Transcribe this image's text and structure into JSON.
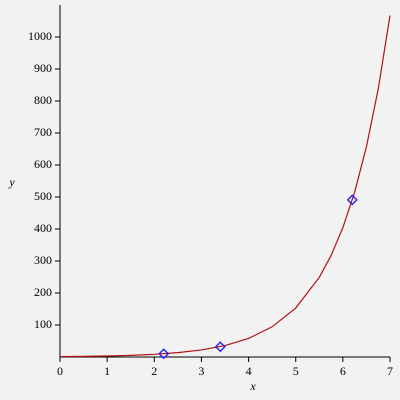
{
  "chart_data": {
    "type": "line",
    "x_label": "x",
    "y_label": "y",
    "xlim": [
      0,
      7
    ],
    "ylim": [
      0,
      1100
    ],
    "xticks": [
      0,
      1,
      2,
      3,
      4,
      5,
      6,
      7
    ],
    "yticks": [
      100,
      200,
      300,
      400,
      500,
      600,
      700,
      800,
      900,
      1000
    ],
    "series": [
      {
        "mode": "line",
        "color": "#b01010",
        "x": [
          0,
          0.5,
          1,
          1.5,
          2,
          2.5,
          3,
          3.5,
          4,
          4.5,
          5,
          5.5,
          5.75,
          6,
          6.25,
          6.5,
          6.75,
          7
        ],
        "values": [
          1.2,
          1.95,
          3.17,
          5.14,
          8.35,
          13.6,
          22.0,
          35.8,
          58.1,
          94.4,
          153,
          249,
          317,
          404,
          515,
          657,
          837,
          1067
        ]
      },
      {
        "mode": "marker",
        "color": "#2020ff",
        "x": [
          2.2,
          3.4,
          6.2
        ],
        "values": [
          10,
          32,
          491
        ]
      }
    ]
  }
}
